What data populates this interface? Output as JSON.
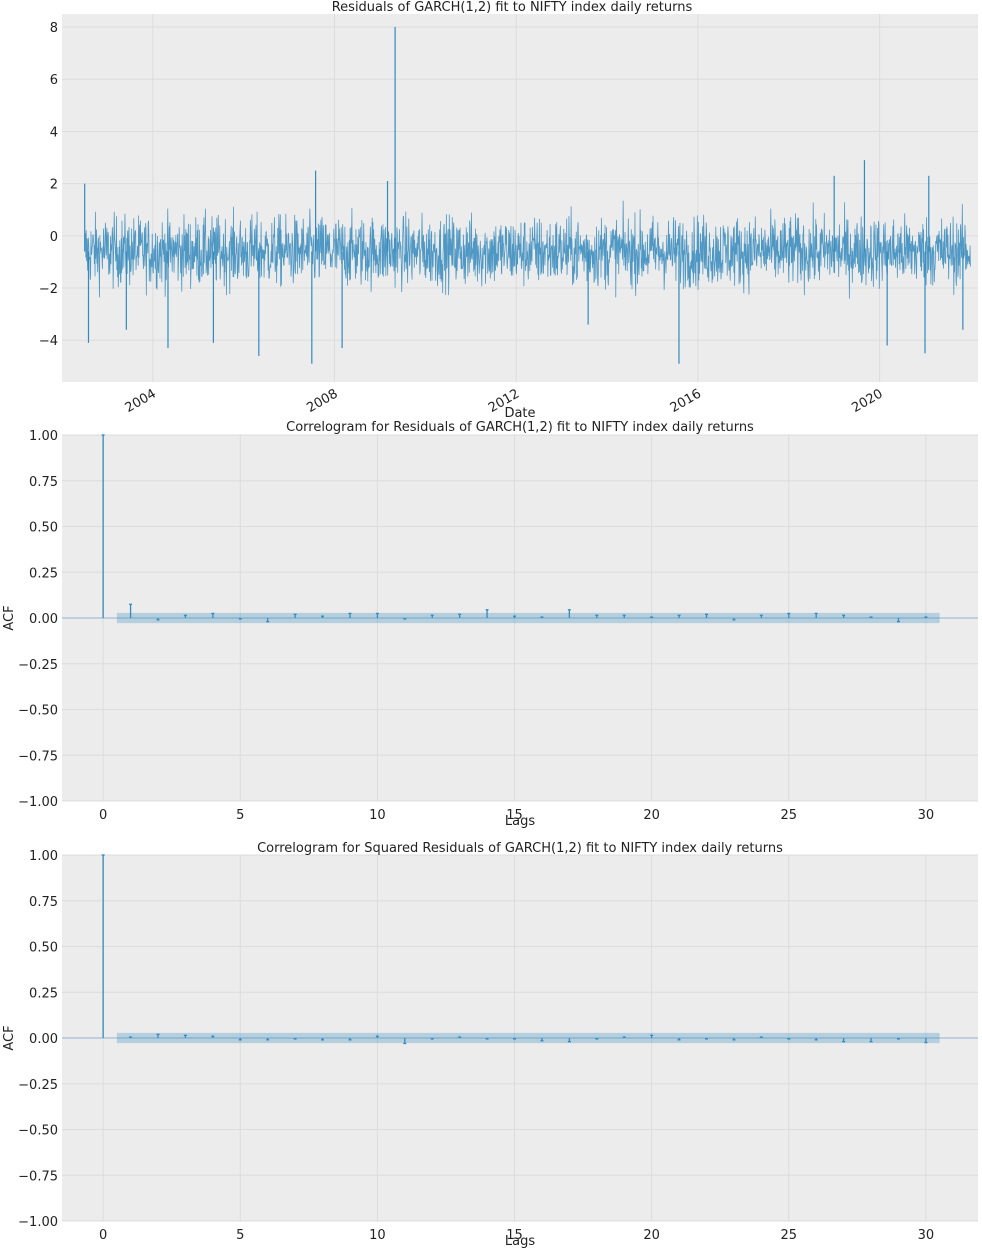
{
  "chart_data": [
    {
      "type": "line",
      "title": "Residuals of GARCH(1,2) fit to NIFTY index daily returns",
      "xlabel": "Date",
      "ylabel": "",
      "xlim": [
        "2002-01",
        "2022-03"
      ],
      "ylim": [
        -5.6,
        8.5
      ],
      "yticks": [
        "−4",
        "−2",
        "0",
        "2",
        "4",
        "6",
        "8"
      ],
      "xticks": [
        "2004",
        "2008",
        "2012",
        "2016",
        "2020"
      ],
      "color": "#348abd",
      "grid": true,
      "series": [
        {
          "start": "2002-07",
          "end": "2022-01",
          "mean": -0.6,
          "spikes": [
            {
              "x": "2002-07",
              "y": 2.0
            },
            {
              "x": "2002-08",
              "y": -4.1
            },
            {
              "x": "2003-06",
              "y": -3.6
            },
            {
              "x": "2004-05",
              "y": -4.3
            },
            {
              "x": "2005-05",
              "y": -4.1
            },
            {
              "x": "2006-05",
              "y": -4.6
            },
            {
              "x": "2007-08",
              "y": 2.5
            },
            {
              "x": "2007-07",
              "y": -4.9
            },
            {
              "x": "2008-03",
              "y": -4.3
            },
            {
              "x": "2009-05",
              "y": 8.0
            },
            {
              "x": "2009-03",
              "y": 2.1
            },
            {
              "x": "2015-08",
              "y": -4.9
            },
            {
              "x": "2013-08",
              "y": -3.4
            },
            {
              "x": "2019-09",
              "y": 2.9
            },
            {
              "x": "2019-01",
              "y": 2.3
            },
            {
              "x": "2020-03",
              "y": -4.2
            },
            {
              "x": "2021-01",
              "y": -4.5
            },
            {
              "x": "2021-02",
              "y": 2.3
            },
            {
              "x": "2021-11",
              "y": -3.6
            }
          ]
        }
      ]
    },
    {
      "type": "bar",
      "title": "Correlogram for Residuals of GARCH(1,2) fit to NIFTY index daily returns",
      "xlabel": "Lags",
      "ylabel": "ACF",
      "xlim": [
        -1.5,
        31.9
      ],
      "ylim": [
        -1.0,
        1.0
      ],
      "yticks": [
        "1.00",
        "0.75",
        "0.50",
        "0.25",
        "0.00",
        "−0.25",
        "−0.50",
        "−0.75",
        "−1.00"
      ],
      "xticks": [
        "0",
        "5",
        "10",
        "15",
        "20",
        "25",
        "30"
      ],
      "confidence_band": 0.028,
      "lags": [
        0,
        1,
        2,
        3,
        4,
        5,
        6,
        7,
        8,
        9,
        10,
        11,
        12,
        13,
        14,
        15,
        16,
        17,
        18,
        19,
        20,
        21,
        22,
        23,
        24,
        25,
        26,
        27,
        28,
        29,
        30
      ],
      "values": [
        1.0,
        0.075,
        -0.01,
        0.015,
        0.025,
        -0.005,
        -0.02,
        0.02,
        0.01,
        0.025,
        0.025,
        -0.005,
        0.015,
        0.02,
        0.045,
        0.01,
        0.005,
        0.045,
        0.015,
        0.015,
        0.005,
        0.015,
        0.02,
        -0.01,
        0.015,
        0.025,
        0.025,
        0.015,
        0.005,
        -0.02,
        0.005
      ]
    },
    {
      "type": "bar",
      "title": "Correlogram for Squared Residuals of GARCH(1,2) fit to NIFTY index daily returns",
      "xlabel": "Lags",
      "ylabel": "ACF",
      "xlim": [
        -1.5,
        31.9
      ],
      "ylim": [
        -1.0,
        1.0
      ],
      "yticks": [
        "1.00",
        "0.75",
        "0.50",
        "0.25",
        "0.00",
        "−0.25",
        "−0.50",
        "−0.75",
        "−1.00"
      ],
      "xticks": [
        "0",
        "5",
        "10",
        "15",
        "20",
        "25",
        "30"
      ],
      "confidence_band": 0.028,
      "lags": [
        0,
        1,
        2,
        3,
        4,
        5,
        6,
        7,
        8,
        9,
        10,
        11,
        12,
        13,
        14,
        15,
        16,
        17,
        18,
        19,
        20,
        21,
        22,
        23,
        24,
        25,
        26,
        27,
        28,
        29,
        30
      ],
      "values": [
        1.0,
        0.005,
        0.02,
        0.015,
        0.01,
        -0.01,
        -0.01,
        -0.005,
        -0.01,
        -0.01,
        0.01,
        -0.03,
        -0.005,
        0.005,
        -0.005,
        -0.005,
        -0.015,
        -0.02,
        -0.005,
        0.005,
        0.015,
        -0.01,
        -0.005,
        -0.01,
        0.005,
        -0.005,
        -0.01,
        -0.02,
        -0.02,
        -0.005,
        -0.025
      ]
    }
  ]
}
